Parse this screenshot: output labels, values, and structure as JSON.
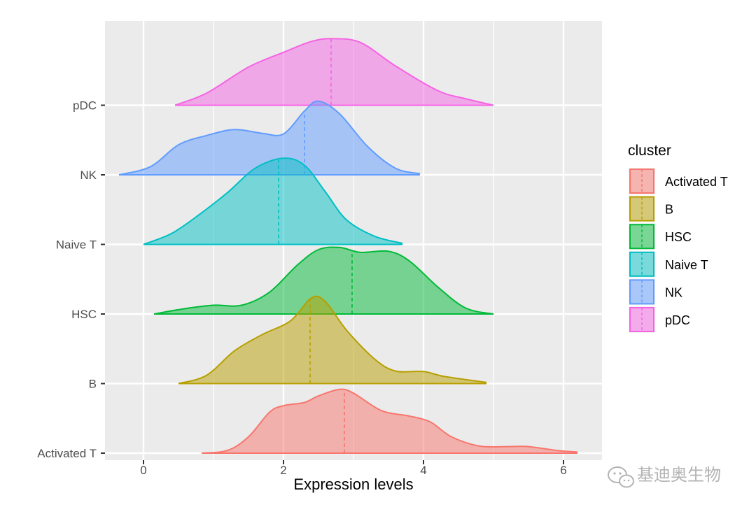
{
  "chart_data": {
    "type": "ridgeline",
    "xlabel": "Expression levels",
    "ylabel": "",
    "xlim": [
      -0.55,
      6.55
    ],
    "xticks": [
      0,
      2,
      4,
      6
    ],
    "grid": true,
    "legend_position": "right",
    "legend_title": "cluster",
    "categories": [
      "Activated T",
      "B",
      "HSC",
      "Naive T",
      "NK",
      "pDC"
    ],
    "series": [
      {
        "name": "Activated T",
        "color": "#F8766D",
        "median": 2.87,
        "points": [
          [
            0.83,
            0
          ],
          [
            1.2,
            0.05
          ],
          [
            1.5,
            0.3
          ],
          [
            1.8,
            0.75
          ],
          [
            2.0,
            0.87
          ],
          [
            2.3,
            0.93
          ],
          [
            2.5,
            1.05
          ],
          [
            2.8,
            1.17
          ],
          [
            3.0,
            1.1
          ],
          [
            3.4,
            0.78
          ],
          [
            3.8,
            0.68
          ],
          [
            4.1,
            0.57
          ],
          [
            4.4,
            0.3
          ],
          [
            4.8,
            0.13
          ],
          [
            5.2,
            0.12
          ],
          [
            5.5,
            0.12
          ],
          [
            5.9,
            0.05
          ],
          [
            6.2,
            0.02
          ]
        ]
      },
      {
        "name": "B",
        "color": "#B79F00",
        "median": 2.38,
        "points": [
          [
            0.5,
            0
          ],
          [
            0.9,
            0.15
          ],
          [
            1.3,
            0.6
          ],
          [
            1.7,
            0.9
          ],
          [
            2.1,
            1.15
          ],
          [
            2.4,
            1.57
          ],
          [
            2.6,
            1.5
          ],
          [
            2.9,
            0.98
          ],
          [
            3.3,
            0.45
          ],
          [
            3.6,
            0.23
          ],
          [
            4.0,
            0.22
          ],
          [
            4.3,
            0.13
          ],
          [
            4.9,
            0.02
          ]
        ]
      },
      {
        "name": "HSC",
        "color": "#00BA38",
        "median": 2.98,
        "points": [
          [
            0.15,
            0
          ],
          [
            0.6,
            0.1
          ],
          [
            1.0,
            0.16
          ],
          [
            1.4,
            0.16
          ],
          [
            1.8,
            0.4
          ],
          [
            2.2,
            0.9
          ],
          [
            2.5,
            1.18
          ],
          [
            2.8,
            1.22
          ],
          [
            3.1,
            1.13
          ],
          [
            3.5,
            1.15
          ],
          [
            3.8,
            0.97
          ],
          [
            4.2,
            0.5
          ],
          [
            4.6,
            0.11
          ],
          [
            5.0,
            0
          ]
        ]
      },
      {
        "name": "Naive T",
        "color": "#00BFC4",
        "median": 1.93,
        "points": [
          [
            0.0,
            0
          ],
          [
            0.4,
            0.2
          ],
          [
            0.8,
            0.55
          ],
          [
            1.2,
            0.95
          ],
          [
            1.6,
            1.4
          ],
          [
            2.0,
            1.58
          ],
          [
            2.3,
            1.45
          ],
          [
            2.6,
            0.96
          ],
          [
            2.9,
            0.45
          ],
          [
            3.3,
            0.15
          ],
          [
            3.7,
            0.02
          ]
        ]
      },
      {
        "name": "NK",
        "color": "#619CFF",
        "median": 2.3,
        "points": [
          [
            -0.35,
            0
          ],
          [
            0.1,
            0.15
          ],
          [
            0.5,
            0.55
          ],
          [
            0.9,
            0.72
          ],
          [
            1.3,
            0.83
          ],
          [
            1.7,
            0.76
          ],
          [
            2.0,
            0.75
          ],
          [
            2.3,
            1.17
          ],
          [
            2.5,
            1.35
          ],
          [
            2.8,
            1.12
          ],
          [
            3.2,
            0.52
          ],
          [
            3.6,
            0.12
          ],
          [
            3.95,
            0.02
          ]
        ]
      },
      {
        "name": "pDC",
        "color": "#F564E3",
        "median": 2.68,
        "points": [
          [
            0.45,
            0
          ],
          [
            0.9,
            0.22
          ],
          [
            1.5,
            0.7
          ],
          [
            2.0,
            0.97
          ],
          [
            2.4,
            1.17
          ],
          [
            2.7,
            1.22
          ],
          [
            3.1,
            1.15
          ],
          [
            3.6,
            0.72
          ],
          [
            4.2,
            0.27
          ],
          [
            4.6,
            0.12
          ],
          [
            5.0,
            0
          ]
        ]
      }
    ]
  },
  "watermark": {
    "icon": "wechat-icon",
    "text": "基迪奥生物"
  }
}
